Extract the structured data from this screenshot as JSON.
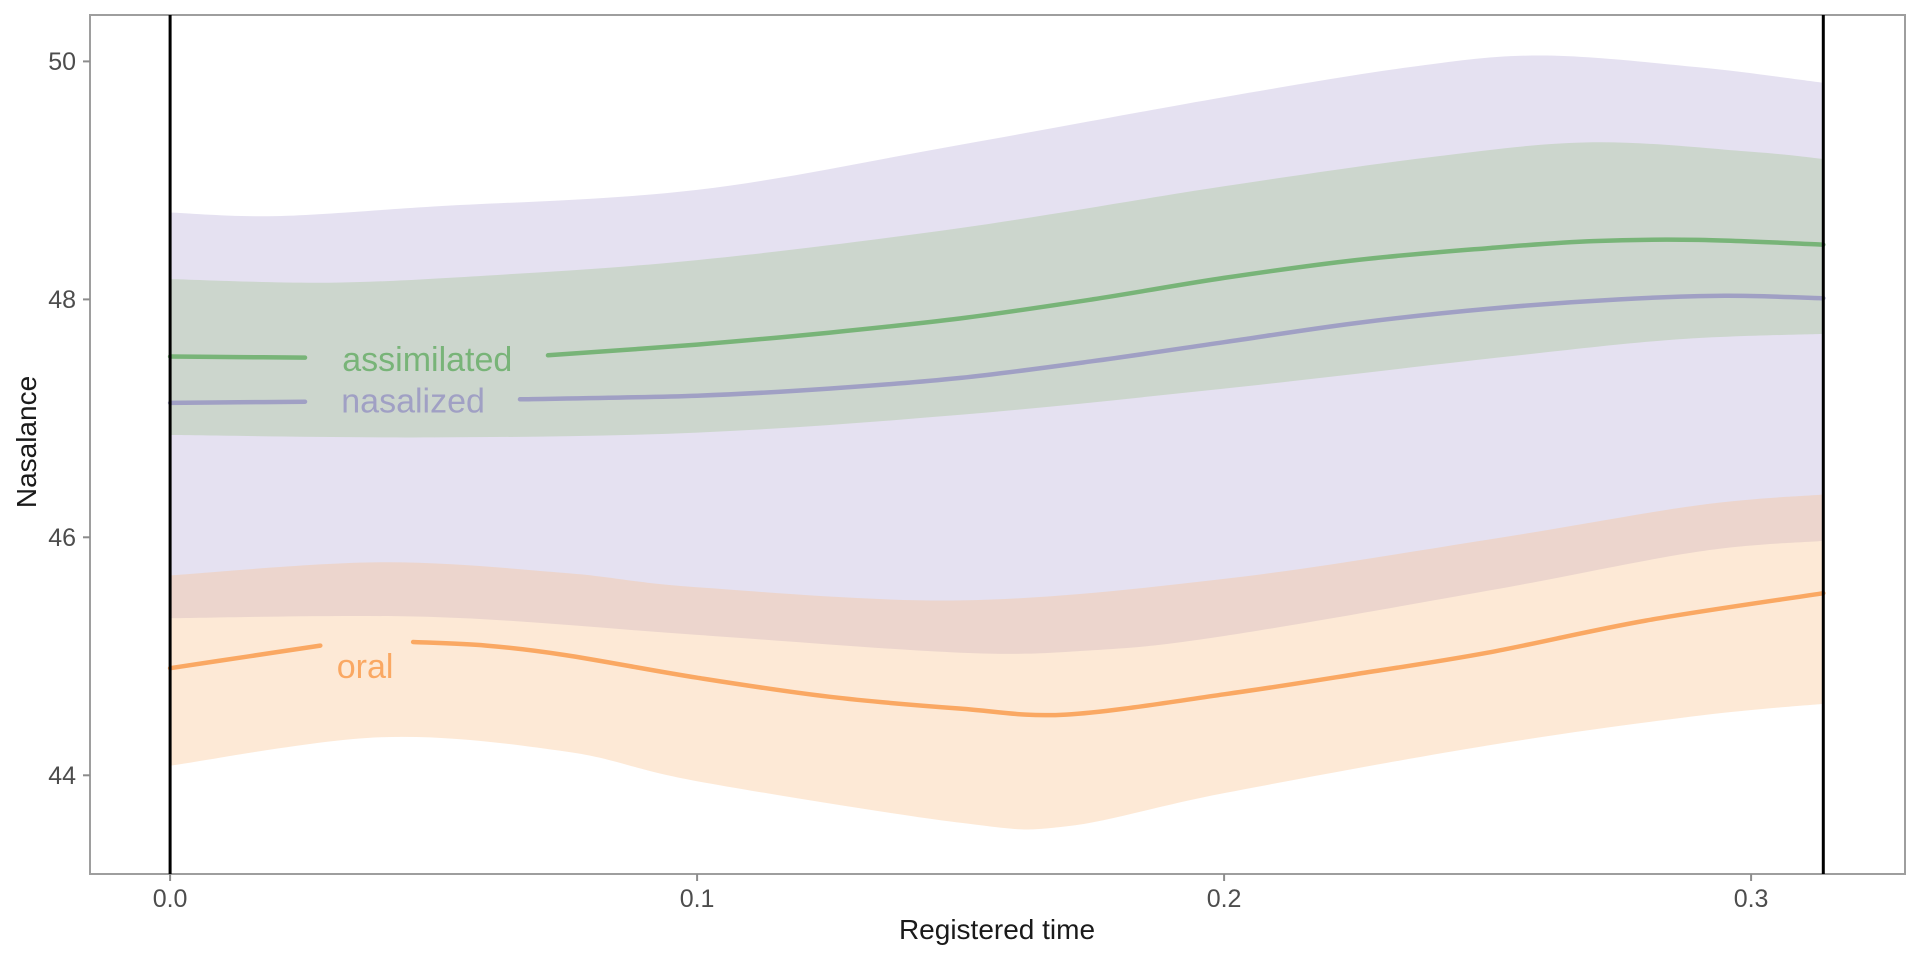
{
  "chart_data": {
    "type": "line",
    "subtype": "smooth-lines-with-confidence-ribbons",
    "title": "",
    "xlabel": "Registered time",
    "ylabel": "Nasalance",
    "grid": false,
    "legend": "inline-labels-on-lines",
    "xlim": [
      -0.0152,
      0.3292
    ],
    "ylim": [
      43.17,
      50.39
    ],
    "x_ticks": {
      "values": [
        0.0,
        0.1,
        0.2,
        0.3
      ],
      "labels": [
        "0.0",
        "0.1",
        "0.2",
        "0.3"
      ]
    },
    "y_ticks": {
      "values": [
        44,
        46,
        48,
        50
      ],
      "labels": [
        "44",
        "46",
        "48",
        "50"
      ]
    },
    "vlines": [
      0.0,
      0.3137
    ],
    "colors": {
      "panel_border": "#9e9e9e",
      "tick_mark": "#8c8c8c",
      "tick_label": "#4d4d4d",
      "axis_title": "#1a1a1a",
      "vline": "#000000",
      "ribbon_opacity": 0.35
    },
    "series": [
      {
        "name": "nasalized",
        "label": {
          "text": "nasalized",
          "x": 0.0461,
          "y": 47.15
        },
        "color": "#a0a0c4",
        "ribbon_color": "#b5a9d7",
        "line_segments": [
          [
            [
              0,
              47.13
            ],
            [
              0.013,
              47.135
            ],
            [
              0.0256,
              47.14
            ]
          ],
          [
            [
              0.0664,
              47.16
            ],
            [
              0.1,
              47.19
            ],
            [
              0.125,
              47.25
            ],
            [
              0.15,
              47.34
            ],
            [
              0.175,
              47.48
            ],
            [
              0.2,
              47.64
            ],
            [
              0.225,
              47.8
            ],
            [
              0.25,
              47.92
            ],
            [
              0.275,
              48.0
            ],
            [
              0.295,
              48.03
            ],
            [
              0.3137,
              48.01
            ]
          ]
        ],
        "band_upper": [
          [
            0,
            48.73
          ],
          [
            0.02,
            48.7
          ],
          [
            0.05,
            48.78
          ],
          [
            0.1,
            48.92
          ],
          [
            0.15,
            49.3
          ],
          [
            0.2,
            49.7
          ],
          [
            0.235,
            49.95
          ],
          [
            0.26,
            50.05
          ],
          [
            0.29,
            49.95
          ],
          [
            0.3137,
            49.82
          ]
        ],
        "band_lower": [
          [
            0,
            45.32
          ],
          [
            0.05,
            45.33
          ],
          [
            0.1,
            45.18
          ],
          [
            0.15,
            45.03
          ],
          [
            0.175,
            45.05
          ],
          [
            0.2,
            45.17
          ],
          [
            0.25,
            45.55
          ],
          [
            0.29,
            45.88
          ],
          [
            0.3137,
            45.97
          ]
        ]
      },
      {
        "name": "assimilated",
        "label": {
          "text": "assimilated",
          "x": 0.0488,
          "y": 47.5
        },
        "color": "#78b478",
        "ribbon_color": "#9dc48a",
        "line_segments": [
          [
            [
              0,
              47.52
            ],
            [
              0.013,
              47.515
            ],
            [
              0.0256,
              47.51
            ]
          ],
          [
            [
              0.0717,
              47.53
            ],
            [
              0.1,
              47.62
            ],
            [
              0.125,
              47.72
            ],
            [
              0.15,
              47.84
            ],
            [
              0.175,
              48.0
            ],
            [
              0.2,
              48.18
            ],
            [
              0.225,
              48.33
            ],
            [
              0.25,
              48.43
            ],
            [
              0.27,
              48.49
            ],
            [
              0.29,
              48.5
            ],
            [
              0.3137,
              48.46
            ]
          ]
        ],
        "band_upper": [
          [
            0,
            48.17
          ],
          [
            0.03,
            48.14
          ],
          [
            0.06,
            48.2
          ],
          [
            0.1,
            48.33
          ],
          [
            0.15,
            48.6
          ],
          [
            0.2,
            48.95
          ],
          [
            0.24,
            49.2
          ],
          [
            0.27,
            49.32
          ],
          [
            0.3,
            49.24
          ],
          [
            0.3137,
            49.18
          ]
        ],
        "band_lower": [
          [
            0,
            46.86
          ],
          [
            0.05,
            46.84
          ],
          [
            0.1,
            46.88
          ],
          [
            0.15,
            47.03
          ],
          [
            0.2,
            47.25
          ],
          [
            0.25,
            47.5
          ],
          [
            0.285,
            47.66
          ],
          [
            0.3137,
            47.71
          ]
        ]
      },
      {
        "name": "oral",
        "label": {
          "text": "oral",
          "x": 0.037,
          "y": 44.92
        },
        "color": "#faa863",
        "ribbon_color": "#f9c08a",
        "line_segments": [
          [
            [
              0,
              44.9
            ],
            [
              0.015,
              45.0
            ],
            [
              0.0285,
              45.09
            ]
          ],
          [
            [
              0.0461,
              45.12
            ],
            [
              0.06,
              45.09
            ],
            [
              0.075,
              45.01
            ],
            [
              0.1,
              44.82
            ],
            [
              0.125,
              44.66
            ],
            [
              0.15,
              44.56
            ],
            [
              0.17,
              44.51
            ],
            [
              0.2,
              44.68
            ],
            [
              0.225,
              44.85
            ],
            [
              0.25,
              45.03
            ],
            [
              0.28,
              45.3
            ],
            [
              0.3137,
              45.53
            ]
          ]
        ],
        "band_upper": [
          [
            0,
            45.68
          ],
          [
            0.04,
            45.79
          ],
          [
            0.075,
            45.7
          ],
          [
            0.1,
            45.58
          ],
          [
            0.15,
            45.47
          ],
          [
            0.2,
            45.65
          ],
          [
            0.25,
            45.98
          ],
          [
            0.29,
            46.27
          ],
          [
            0.3137,
            46.36
          ]
        ],
        "band_lower": [
          [
            0,
            44.08
          ],
          [
            0.04,
            44.32
          ],
          [
            0.075,
            44.2
          ],
          [
            0.1,
            43.95
          ],
          [
            0.15,
            43.6
          ],
          [
            0.17,
            43.57
          ],
          [
            0.2,
            43.85
          ],
          [
            0.25,
            44.25
          ],
          [
            0.29,
            44.5
          ],
          [
            0.3137,
            44.6
          ]
        ]
      }
    ]
  }
}
